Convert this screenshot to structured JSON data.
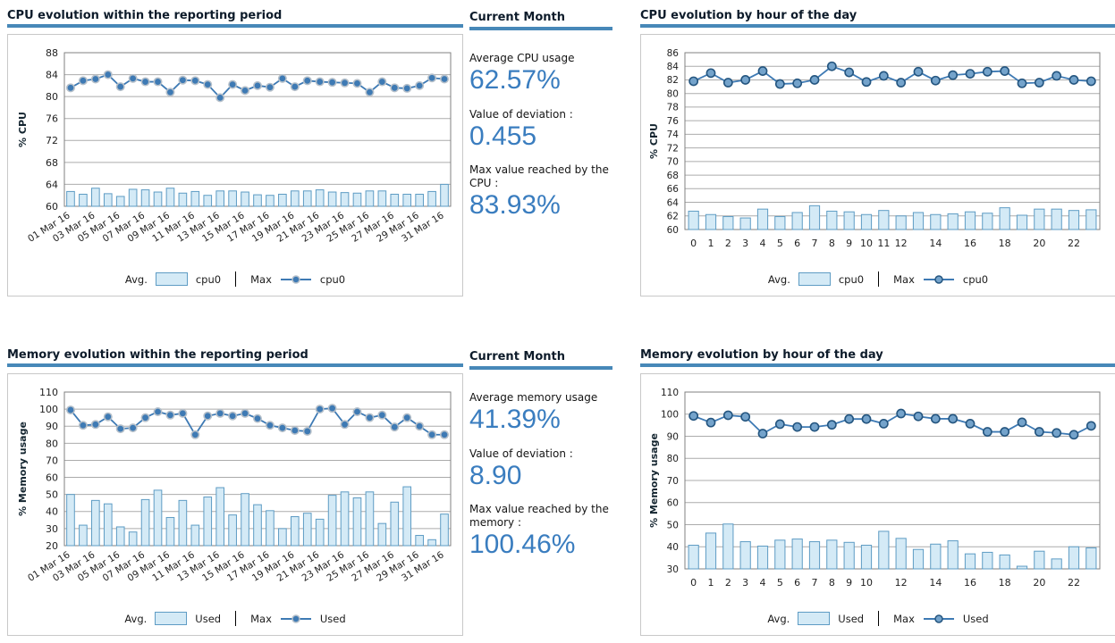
{
  "colors": {
    "accent": "#4788b8",
    "title_text": "#0d1b2a",
    "stat_value": "#3a7dbf",
    "bar_fill": "#d4eaf6",
    "bar_stroke": "#5e9cc4",
    "grid": "#ababab",
    "axis": "#808080",
    "tick_text": "#1f1f1f",
    "panel_border": "#c8c8c8"
  },
  "stats": {
    "cpu": {
      "heading": "Current Month",
      "items": [
        {
          "label": "Average CPU usage",
          "value": "62.57%"
        },
        {
          "label": "Value of deviation :",
          "value": "0.455"
        },
        {
          "label": "Max value reached by the CPU :",
          "value": "83.93%"
        }
      ]
    },
    "memory": {
      "heading": "Current Month",
      "items": [
        {
          "label": "Average memory usage",
          "value": "41.39%"
        },
        {
          "label": "Value of deviation :",
          "value": "8.90"
        },
        {
          "label": "Max value reached by the memory :",
          "value": "100.46%"
        }
      ]
    }
  },
  "chart_data": [
    {
      "id": "cpu-daily",
      "type": "bar",
      "subtype": "bar+line combo",
      "layout": "daily",
      "title": "CPU evolution within the reporting period",
      "xlabel": "",
      "ylabel": "% CPU",
      "ylim": [
        60,
        88
      ],
      "ytick_step": 4,
      "grid": "horizontal",
      "legend_position": "bottom",
      "legend": {
        "avg_label": "Avg.",
        "max_label": "Max"
      },
      "style": {
        "line": "#3e7ab4",
        "marker_fill": "#3e7ab4",
        "marker_stroke": "#b6c0ca"
      },
      "categories": [
        1,
        2,
        3,
        4,
        5,
        6,
        7,
        8,
        9,
        10,
        11,
        12,
        13,
        14,
        15,
        16,
        17,
        18,
        19,
        20,
        21,
        22,
        23,
        24,
        25,
        26,
        27,
        28,
        29,
        30,
        31
      ],
      "xticks": [
        {
          "i": 0,
          "label": "01 Mar 16"
        },
        {
          "i": 2,
          "label": "03 Mar 16"
        },
        {
          "i": 4,
          "label": "05 Mar 16"
        },
        {
          "i": 6,
          "label": "07 Mar 16"
        },
        {
          "i": 8,
          "label": "09 Mar 16"
        },
        {
          "i": 10,
          "label": "11 Mar 16"
        },
        {
          "i": 12,
          "label": "13 Mar 16"
        },
        {
          "i": 14,
          "label": "15 Mar 16"
        },
        {
          "i": 16,
          "label": "17 Mar 16"
        },
        {
          "i": 18,
          "label": "19 Mar 16"
        },
        {
          "i": 20,
          "label": "21 Mar 16"
        },
        {
          "i": 22,
          "label": "23 Mar 16"
        },
        {
          "i": 24,
          "label": "25 Mar 16"
        },
        {
          "i": 26,
          "label": "27 Mar 16"
        },
        {
          "i": 28,
          "label": "29 Mar 16"
        },
        {
          "i": 30,
          "label": "31 Mar 16"
        }
      ],
      "series": [
        {
          "name": "cpu0",
          "role": "Avg.",
          "type": "bar",
          "values": [
            62.7,
            62.2,
            63.3,
            62.3,
            61.8,
            63.1,
            63.0,
            62.6,
            63.3,
            62.4,
            62.7,
            62.0,
            62.8,
            62.8,
            62.6,
            62.1,
            62.0,
            62.2,
            62.8,
            62.8,
            63.0,
            62.6,
            62.5,
            62.4,
            62.8,
            62.8,
            62.2,
            62.2,
            62.2,
            62.7,
            64.0
          ]
        },
        {
          "name": "cpu0",
          "role": "Max",
          "type": "line",
          "values": [
            81.6,
            82.9,
            83.2,
            84.0,
            81.8,
            83.3,
            82.7,
            82.7,
            80.8,
            83.0,
            82.9,
            82.2,
            79.8,
            82.2,
            81.1,
            82.0,
            81.7,
            83.3,
            81.8,
            82.9,
            82.7,
            82.6,
            82.5,
            82.4,
            80.8,
            82.7,
            81.6,
            81.5,
            82.0,
            83.4,
            83.2
          ]
        }
      ]
    },
    {
      "id": "cpu-hourly",
      "type": "bar",
      "subtype": "bar+line combo",
      "layout": "hourly",
      "title": "CPU evolution by hour of the day",
      "xlabel": "",
      "ylabel": "% CPU",
      "ylim": [
        60,
        86
      ],
      "ytick_step": 2,
      "grid": "horizontal",
      "legend_position": "bottom",
      "legend": {
        "avg_label": "Avg.",
        "max_label": "Max"
      },
      "style": {
        "line": "#3e7ab4",
        "marker_fill": "#74a3cb",
        "marker_stroke": "#24557f"
      },
      "categories": [
        0,
        1,
        2,
        3,
        4,
        5,
        6,
        7,
        8,
        9,
        10,
        11,
        12,
        13,
        14,
        15,
        16,
        17,
        18,
        19,
        20,
        21,
        22,
        23
      ],
      "xticks": [
        {
          "i": 0,
          "label": "0"
        },
        {
          "i": 1,
          "label": "1"
        },
        {
          "i": 2,
          "label": "2"
        },
        {
          "i": 3,
          "label": "3"
        },
        {
          "i": 4,
          "label": "4"
        },
        {
          "i": 5,
          "label": "5"
        },
        {
          "i": 6,
          "label": "6"
        },
        {
          "i": 7,
          "label": "7"
        },
        {
          "i": 8,
          "label": "8"
        },
        {
          "i": 9,
          "label": "9"
        },
        {
          "i": 10,
          "label": "10"
        },
        {
          "i": 11,
          "label": "11"
        },
        {
          "i": 12,
          "label": "12"
        },
        {
          "i": 14,
          "label": "14"
        },
        {
          "i": 16,
          "label": "16"
        },
        {
          "i": 18,
          "label": "18"
        },
        {
          "i": 20,
          "label": "20"
        },
        {
          "i": 22,
          "label": "22"
        }
      ],
      "series": [
        {
          "name": "cpu0",
          "role": "Avg.",
          "type": "bar",
          "values": [
            62.7,
            62.2,
            61.9,
            61.7,
            63.0,
            61.9,
            62.5,
            63.5,
            62.7,
            62.6,
            62.2,
            62.8,
            62.0,
            62.5,
            62.2,
            62.3,
            62.6,
            62.4,
            63.2,
            62.1,
            63.0,
            63.0,
            62.8,
            62.9
          ]
        },
        {
          "name": "cpu0",
          "role": "Max",
          "type": "line",
          "values": [
            81.8,
            83.0,
            81.6,
            82.0,
            83.3,
            81.4,
            81.5,
            82.0,
            84.0,
            83.1,
            81.7,
            82.6,
            81.6,
            83.2,
            81.9,
            82.7,
            82.9,
            83.2,
            83.3,
            81.5,
            81.6,
            82.6,
            82.0,
            81.8
          ]
        }
      ]
    },
    {
      "id": "memory-daily",
      "type": "bar",
      "subtype": "bar+line combo",
      "layout": "daily",
      "title": "Memory evolution within the reporting period",
      "xlabel": "",
      "ylabel": "% Memory usage",
      "ylim": [
        20,
        110
      ],
      "ytick_step": 10,
      "grid": "horizontal",
      "legend_position": "bottom",
      "legend": {
        "avg_label": "Avg.",
        "max_label": "Max"
      },
      "style": {
        "line": "#3e7ab4",
        "marker_fill": "#3e7ab4",
        "marker_stroke": "#b6c0ca"
      },
      "categories": [
        1,
        2,
        3,
        4,
        5,
        6,
        7,
        8,
        9,
        10,
        11,
        12,
        13,
        14,
        15,
        16,
        17,
        18,
        19,
        20,
        21,
        22,
        23,
        24,
        25,
        26,
        27,
        28,
        29,
        30,
        31
      ],
      "xticks": [
        {
          "i": 0,
          "label": "01 Mar 16"
        },
        {
          "i": 2,
          "label": "03 Mar 16"
        },
        {
          "i": 4,
          "label": "05 Mar 16"
        },
        {
          "i": 6,
          "label": "07 Mar 16"
        },
        {
          "i": 8,
          "label": "09 Mar 16"
        },
        {
          "i": 10,
          "label": "11 Mar 16"
        },
        {
          "i": 12,
          "label": "13 Mar 16"
        },
        {
          "i": 14,
          "label": "15 Mar 16"
        },
        {
          "i": 16,
          "label": "17 Mar 16"
        },
        {
          "i": 18,
          "label": "19 Mar 16"
        },
        {
          "i": 20,
          "label": "21 Mar 16"
        },
        {
          "i": 22,
          "label": "23 Mar 16"
        },
        {
          "i": 24,
          "label": "25 Mar 16"
        },
        {
          "i": 26,
          "label": "27 Mar 16"
        },
        {
          "i": 28,
          "label": "29 Mar 16"
        },
        {
          "i": 30,
          "label": "31 Mar 16"
        }
      ],
      "series": [
        {
          "name": "Used",
          "role": "Avg.",
          "type": "bar",
          "values": [
            50,
            32,
            46.5,
            44.5,
            31,
            28,
            47,
            52.5,
            36.5,
            46.5,
            32,
            48.5,
            54,
            38,
            50.5,
            44,
            40.5,
            30,
            37,
            39,
            35.5,
            49.5,
            51.5,
            48,
            51.5,
            33,
            45.5,
            54.5,
            26,
            23.5,
            38.5
          ]
        },
        {
          "name": "Used",
          "role": "Max",
          "type": "line",
          "values": [
            99.5,
            90.5,
            91,
            95.5,
            88.5,
            89,
            95,
            98.5,
            96.5,
            97.5,
            85,
            96,
            97.5,
            96,
            97.5,
            94.5,
            90.5,
            89,
            87.5,
            87,
            100,
            100.5,
            91,
            98.5,
            95,
            96.5,
            89.5,
            95,
            90,
            85,
            85
          ]
        }
      ]
    },
    {
      "id": "memory-hourly",
      "type": "bar",
      "subtype": "bar+line combo",
      "layout": "hourly",
      "title": "Memory evolution by hour of the day",
      "xlabel": "",
      "ylabel": "% Memory usage",
      "ylim": [
        30,
        110
      ],
      "ytick_step": 10,
      "grid": "horizontal",
      "legend_position": "bottom",
      "legend": {
        "avg_label": "Avg.",
        "max_label": "Max"
      },
      "style": {
        "line": "#3e7ab4",
        "marker_fill": "#74a3cb",
        "marker_stroke": "#24557f"
      },
      "categories": [
        0,
        1,
        2,
        3,
        4,
        5,
        6,
        7,
        8,
        9,
        10,
        11,
        12,
        13,
        14,
        15,
        16,
        17,
        18,
        19,
        20,
        21,
        22,
        23
      ],
      "xticks": [
        {
          "i": 0,
          "label": "0"
        },
        {
          "i": 1,
          "label": "1"
        },
        {
          "i": 2,
          "label": "2"
        },
        {
          "i": 3,
          "label": "3"
        },
        {
          "i": 4,
          "label": "4"
        },
        {
          "i": 5,
          "label": "5"
        },
        {
          "i": 6,
          "label": "6"
        },
        {
          "i": 7,
          "label": "7"
        },
        {
          "i": 8,
          "label": "8"
        },
        {
          "i": 9,
          "label": "9"
        },
        {
          "i": 10,
          "label": "10"
        },
        {
          "i": 12,
          "label": "12"
        },
        {
          "i": 14,
          "label": "14"
        },
        {
          "i": 16,
          "label": "16"
        },
        {
          "i": 18,
          "label": "18"
        },
        {
          "i": 20,
          "label": "20"
        },
        {
          "i": 22,
          "label": "22"
        }
      ],
      "series": [
        {
          "name": "Used",
          "role": "Avg.",
          "type": "bar",
          "values": [
            40.7,
            46.2,
            50.3,
            42.3,
            40.3,
            43,
            43.5,
            42.3,
            43,
            42,
            40.7,
            47,
            43.8,
            38.8,
            41.2,
            42.7,
            36.8,
            37.5,
            36.3,
            31.2,
            38,
            34.5,
            40,
            39.5
          ]
        },
        {
          "name": "Used",
          "role": "Max",
          "type": "line",
          "values": [
            99.2,
            96.2,
            99.5,
            98.8,
            91.2,
            95.5,
            94.2,
            94.2,
            95.2,
            97.8,
            97.8,
            95.7,
            100.3,
            99,
            97.9,
            97.9,
            95.7,
            92,
            92,
            96.3,
            92,
            91.5,
            90.7,
            94.7
          ]
        }
      ]
    }
  ]
}
